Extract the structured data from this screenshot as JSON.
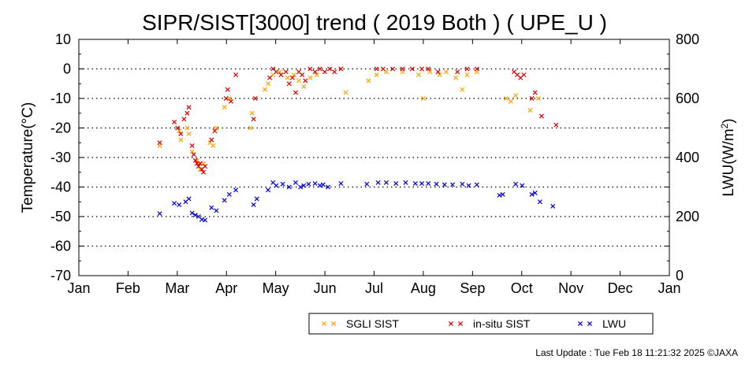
{
  "chart_data": {
    "type": "scatter",
    "title": "SIPR/SIST[3000] trend ( 2019 Both ) ( UPE_U )",
    "ylabel": "Temperature(°C)",
    "y2label_main": "LWU(W/m",
    "y2label_sup": "2",
    "y2label_end": ")",
    "ylim": [
      -70,
      10
    ],
    "y2lim": [
      0,
      800
    ],
    "yticks": [
      "10",
      "0",
      "-10",
      "-20",
      "-30",
      "-40",
      "-50",
      "-60",
      "-70"
    ],
    "y2ticks": [
      "800",
      "600",
      "400",
      "200",
      "0"
    ],
    "xticks": [
      "Jan",
      "Feb",
      "Mar",
      "Apr",
      "May",
      "Jun",
      "Jul",
      "Aug",
      "Sep",
      "Oct",
      "Nov",
      "Dec",
      "Jan"
    ],
    "grid": "horizontal dotted",
    "legend_position": "bottom",
    "series": [
      {
        "name": "SGLI SIST",
        "color": "#ffa500",
        "axis": "left",
        "points": [
          [
            "2019-02-20",
            -26
          ],
          [
            "2019-03-04",
            -21
          ],
          [
            "2019-03-05",
            -24
          ],
          [
            "2019-03-09",
            -20
          ],
          [
            "2019-03-10",
            -22
          ],
          [
            "2019-03-12",
            -28
          ],
          [
            "2019-03-15",
            -31
          ],
          [
            "2019-03-17",
            -34
          ],
          [
            "2019-03-19",
            -32
          ],
          [
            "2019-03-23",
            -25
          ],
          [
            "2019-03-25",
            -26
          ],
          [
            "2019-03-27",
            -20
          ],
          [
            "2019-04-01",
            -13
          ],
          [
            "2019-04-04",
            -10
          ],
          [
            "2019-04-17",
            -20
          ],
          [
            "2019-04-18",
            -15
          ],
          [
            "2019-04-26",
            -7
          ],
          [
            "2019-04-28",
            -5
          ],
          [
            "2019-05-01",
            -2
          ],
          [
            "2019-05-05",
            -1
          ],
          [
            "2019-05-10",
            -3
          ],
          [
            "2019-05-14",
            -2
          ],
          [
            "2019-05-17",
            -4
          ],
          [
            "2019-05-20",
            -6
          ],
          [
            "2019-05-24",
            -3
          ],
          [
            "2019-05-28",
            -2
          ],
          [
            "2019-06-15",
            -8
          ],
          [
            "2019-06-29",
            -4
          ],
          [
            "2019-07-04",
            -2
          ],
          [
            "2019-07-10",
            -1
          ],
          [
            "2019-07-20",
            -1
          ],
          [
            "2019-07-30",
            -2
          ],
          [
            "2019-08-02",
            -10
          ],
          [
            "2019-08-06",
            -1
          ],
          [
            "2019-08-12",
            -2
          ],
          [
            "2019-08-16",
            -1
          ],
          [
            "2019-08-22",
            -3
          ],
          [
            "2019-08-26",
            -7
          ],
          [
            "2019-08-29",
            -2
          ],
          [
            "2019-09-04",
            -1
          ],
          [
            "2019-09-22",
            -10
          ],
          [
            "2019-09-25",
            -11
          ],
          [
            "2019-09-28",
            -9
          ],
          [
            "2019-10-07",
            -14
          ],
          [
            "2019-10-12",
            -10
          ]
        ]
      },
      {
        "name": "in-situ SIST",
        "color": "#e00000",
        "axis": "left",
        "points": [
          [
            "2019-02-20",
            -25
          ],
          [
            "2019-03-01",
            -18
          ],
          [
            "2019-03-03",
            -20
          ],
          [
            "2019-03-05",
            -22
          ],
          [
            "2019-03-07",
            -17
          ],
          [
            "2019-03-09",
            -15
          ],
          [
            "2019-03-10",
            -13
          ],
          [
            "2019-03-12",
            -26
          ],
          [
            "2019-03-13",
            -29
          ],
          [
            "2019-03-14",
            -31
          ],
          [
            "2019-03-15",
            -32
          ],
          [
            "2019-03-16",
            -33
          ],
          [
            "2019-03-17",
            -32
          ],
          [
            "2019-03-18",
            -34
          ],
          [
            "2019-03-19",
            -35
          ],
          [
            "2019-03-20",
            -33
          ],
          [
            "2019-03-24",
            -24
          ],
          [
            "2019-03-26",
            -21
          ],
          [
            "2019-04-02",
            -10
          ],
          [
            "2019-04-03",
            -7
          ],
          [
            "2019-04-05",
            -11
          ],
          [
            "2019-04-08",
            -2
          ],
          [
            "2019-04-19",
            -17
          ],
          [
            "2019-04-20",
            -10
          ],
          [
            "2019-04-29",
            -3
          ],
          [
            "2019-05-01",
            0
          ],
          [
            "2019-05-03",
            -1
          ],
          [
            "2019-05-06",
            -2
          ],
          [
            "2019-05-09",
            -1
          ],
          [
            "2019-05-11",
            -5
          ],
          [
            "2019-05-13",
            -3
          ],
          [
            "2019-05-15",
            -8
          ],
          [
            "2019-05-17",
            -1
          ],
          [
            "2019-05-19",
            -2
          ],
          [
            "2019-05-21",
            -4
          ],
          [
            "2019-05-24",
            0
          ],
          [
            "2019-05-27",
            -1
          ],
          [
            "2019-05-30",
            0
          ],
          [
            "2019-06-02",
            -1
          ],
          [
            "2019-06-05",
            0
          ],
          [
            "2019-06-08",
            -1
          ],
          [
            "2019-06-12",
            0
          ],
          [
            "2019-07-04",
            0
          ],
          [
            "2019-07-08",
            0
          ],
          [
            "2019-07-14",
            0
          ],
          [
            "2019-07-20",
            0
          ],
          [
            "2019-07-26",
            0
          ],
          [
            "2019-08-01",
            0
          ],
          [
            "2019-08-05",
            0
          ],
          [
            "2019-08-11",
            -1
          ],
          [
            "2019-08-23",
            -1
          ],
          [
            "2019-08-29",
            0
          ],
          [
            "2019-09-04",
            0
          ],
          [
            "2019-09-27",
            -1
          ],
          [
            "2019-09-29",
            -2
          ],
          [
            "2019-10-01",
            -3
          ],
          [
            "2019-10-03",
            -2
          ],
          [
            "2019-10-08",
            -10
          ],
          [
            "2019-10-10",
            -8
          ],
          [
            "2019-10-14",
            -16
          ],
          [
            "2019-10-23",
            -19
          ]
        ]
      },
      {
        "name": "LWU",
        "color": "#0000e0",
        "axis": "right",
        "points": [
          [
            "2019-02-20",
            210
          ],
          [
            "2019-03-01",
            245
          ],
          [
            "2019-03-04",
            240
          ],
          [
            "2019-03-08",
            250
          ],
          [
            "2019-03-10",
            260
          ],
          [
            "2019-03-12",
            212
          ],
          [
            "2019-03-14",
            205
          ],
          [
            "2019-03-16",
            200
          ],
          [
            "2019-03-18",
            190
          ],
          [
            "2019-03-20",
            188
          ],
          [
            "2019-03-24",
            230
          ],
          [
            "2019-03-27",
            220
          ],
          [
            "2019-04-01",
            255
          ],
          [
            "2019-04-04",
            275
          ],
          [
            "2019-04-08",
            290
          ],
          [
            "2019-04-19",
            240
          ],
          [
            "2019-04-21",
            260
          ],
          [
            "2019-04-28",
            290
          ],
          [
            "2019-05-01",
            315
          ],
          [
            "2019-05-03",
            305
          ],
          [
            "2019-05-07",
            310
          ],
          [
            "2019-05-11",
            300
          ],
          [
            "2019-05-15",
            315
          ],
          [
            "2019-05-18",
            300
          ],
          [
            "2019-05-20",
            305
          ],
          [
            "2019-05-23",
            310
          ],
          [
            "2019-05-27",
            312
          ],
          [
            "2019-05-30",
            305
          ],
          [
            "2019-06-01",
            308
          ],
          [
            "2019-06-04",
            300
          ],
          [
            "2019-06-12",
            312
          ],
          [
            "2019-06-28",
            310
          ],
          [
            "2019-07-05",
            315
          ],
          [
            "2019-07-10",
            315
          ],
          [
            "2019-07-16",
            312
          ],
          [
            "2019-07-22",
            315
          ],
          [
            "2019-07-28",
            312
          ],
          [
            "2019-08-01",
            312
          ],
          [
            "2019-08-05",
            312
          ],
          [
            "2019-08-10",
            310
          ],
          [
            "2019-08-15",
            308
          ],
          [
            "2019-08-20",
            308
          ],
          [
            "2019-08-26",
            310
          ],
          [
            "2019-08-30",
            305
          ],
          [
            "2019-09-04",
            308
          ],
          [
            "2019-09-18",
            272
          ],
          [
            "2019-09-20",
            275
          ],
          [
            "2019-09-28",
            310
          ],
          [
            "2019-10-02",
            305
          ],
          [
            "2019-10-08",
            275
          ],
          [
            "2019-10-10",
            280
          ],
          [
            "2019-10-13",
            250
          ],
          [
            "2019-10-21",
            235
          ]
        ]
      }
    ]
  },
  "footer": "Last Update : Tue Feb 18 11:21:32 2025  ©JAXA"
}
